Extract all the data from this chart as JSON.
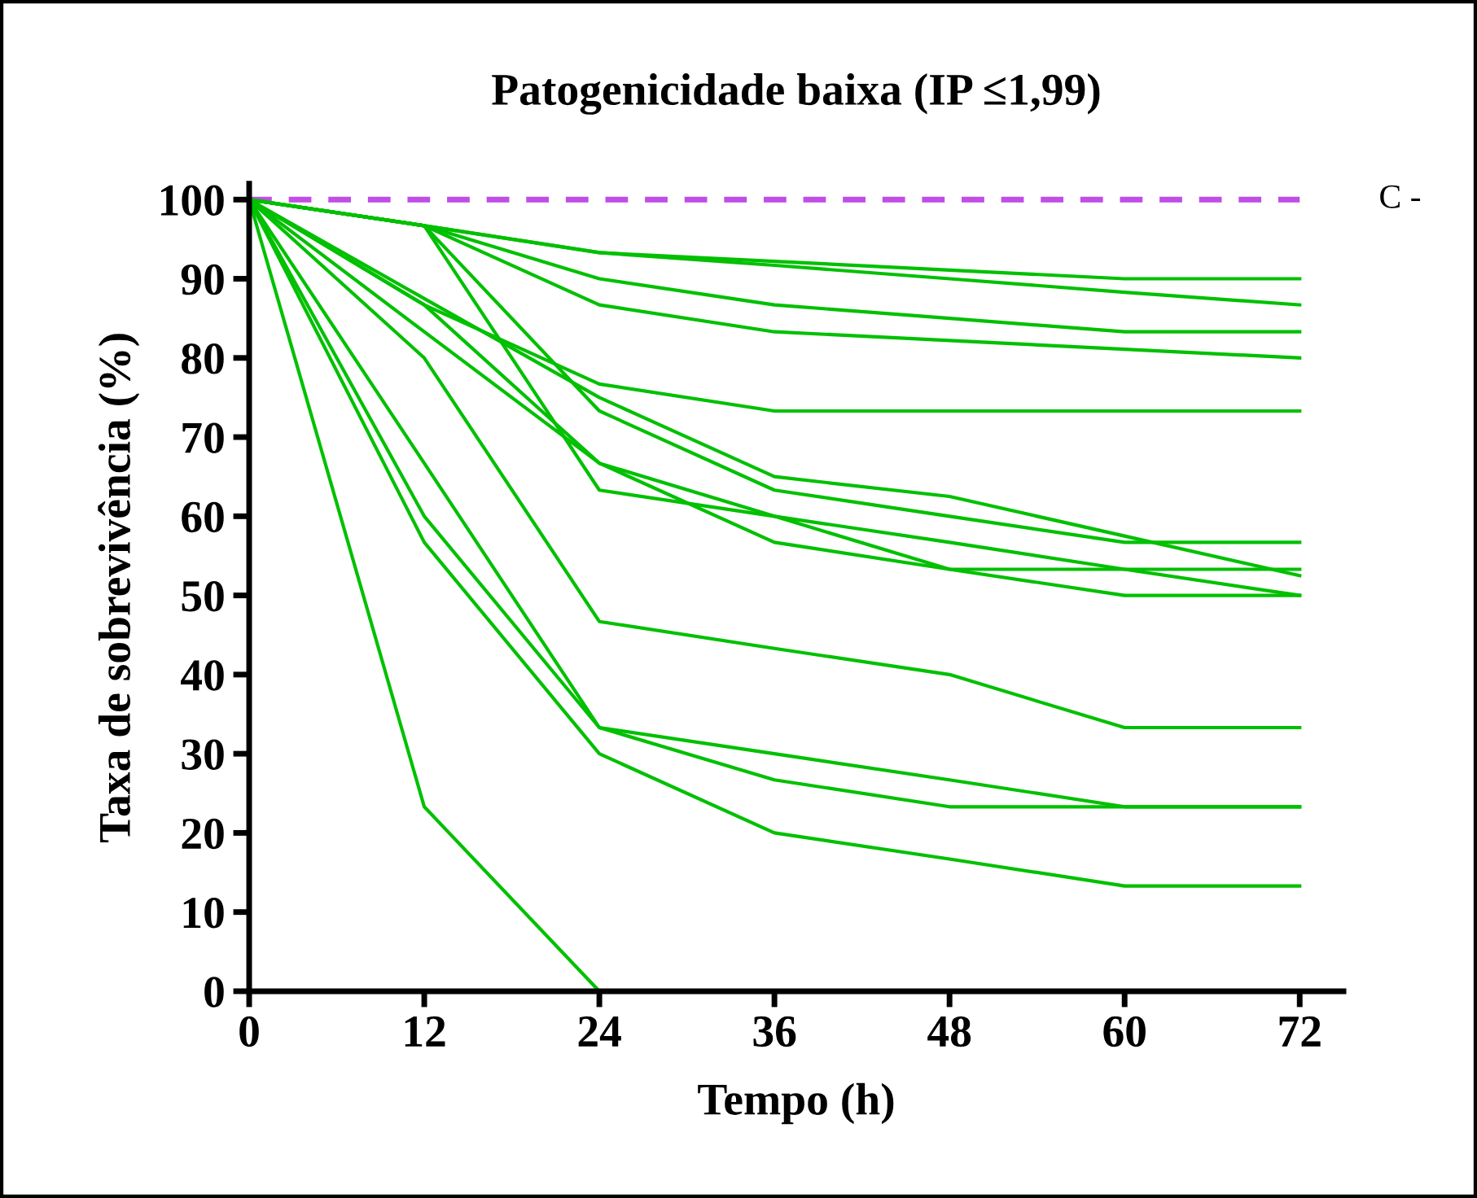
{
  "chart_data": {
    "type": "line",
    "title": "Patogenicidade baixa (IP ≤1,99)",
    "xlabel": "Tempo (h)",
    "ylabel": "Taxa de sobrevivência (%)",
    "x": [
      0,
      12,
      24,
      36,
      48,
      60,
      72
    ],
    "series": [
      {
        "name": "C -",
        "color": "#c04de6",
        "line_style": "dashed",
        "values": [
          100,
          100,
          100,
          100,
          100,
          100,
          100
        ]
      },
      {
        "color": "#00c000",
        "values": [
          100,
          96.7,
          93.3,
          92.2,
          91.1,
          90,
          90
        ]
      },
      {
        "color": "#00c000",
        "values": [
          100,
          96.7,
          93.3,
          91.7,
          90,
          88.3,
          86.7
        ]
      },
      {
        "color": "#00c000",
        "values": [
          100,
          96.7,
          90,
          86.7,
          85,
          83.3,
          83.3
        ]
      },
      {
        "color": "#00c000",
        "values": [
          100,
          96.7,
          86.7,
          83.3,
          82.2,
          81.1,
          80
        ]
      },
      {
        "color": "#00c000",
        "values": [
          100,
          86.7,
          76.7,
          73.3,
          73.3,
          73.3,
          73.3
        ]
      },
      {
        "color": "#00c000",
        "values": [
          100,
          87.5,
          75,
          65,
          62.5,
          57.5,
          52.5
        ]
      },
      {
        "color": "#00c000",
        "values": [
          100,
          96.7,
          73.3,
          63.3,
          60,
          56.7,
          56.7
        ]
      },
      {
        "color": "#00c000",
        "values": [
          100,
          83.3,
          66.7,
          60,
          56.7,
          53.3,
          50
        ]
      },
      {
        "color": "#00c000",
        "values": [
          100,
          96.7,
          63.3,
          60,
          53.3,
          53.3,
          53.3
        ]
      },
      {
        "color": "#00c000",
        "values": [
          100,
          86.7,
          66.7,
          56.7,
          53.3,
          50,
          50
        ]
      },
      {
        "color": "#00c000",
        "values": [
          100,
          80,
          46.7,
          43.3,
          40,
          33.3,
          33.3
        ]
      },
      {
        "color": "#00c000",
        "values": [
          100,
          66.7,
          33.3,
          30,
          26.7,
          23.3,
          23.3
        ]
      },
      {
        "color": "#00c000",
        "values": [
          100,
          60,
          33.3,
          26.7,
          23.3,
          23.3,
          23.3
        ]
      },
      {
        "color": "#00c000",
        "values": [
          100,
          56.7,
          30,
          20,
          16.7,
          13.3,
          13.3
        ]
      },
      {
        "color": "#00c000",
        "values": [
          100,
          23.3,
          0,
          null,
          null,
          null,
          null
        ]
      }
    ],
    "xlim": [
      0,
      75
    ],
    "ylim": [
      0,
      102
    ],
    "xticks": [
      0,
      12,
      24,
      36,
      48,
      60,
      72
    ],
    "yticks": [
      0,
      10,
      20,
      30,
      40,
      50,
      60,
      70,
      80,
      90,
      100
    ],
    "grid": false,
    "legend": false,
    "marker": "none"
  }
}
